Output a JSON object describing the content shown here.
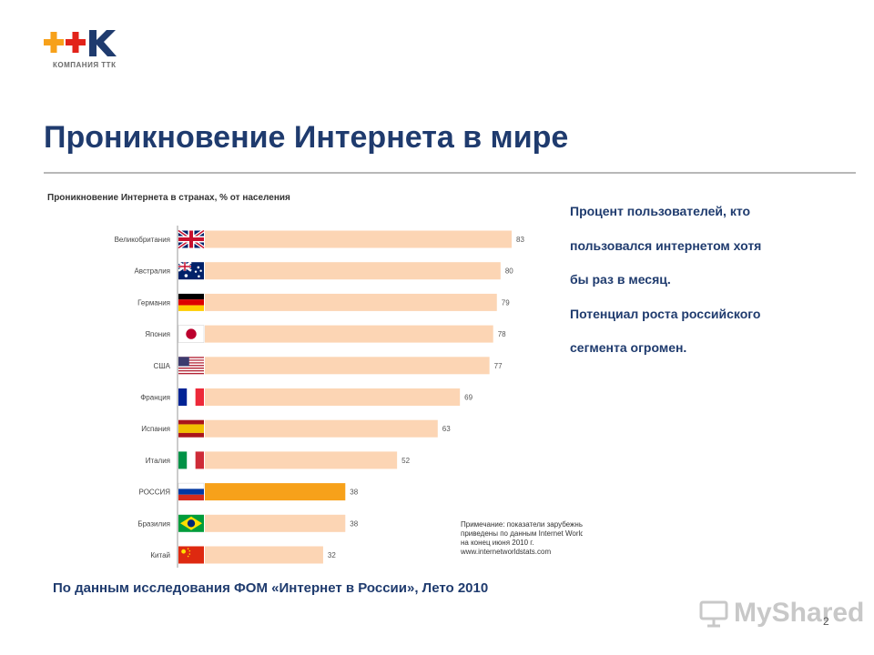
{
  "logo": {
    "caption": "КОМПАНИЯ ТТК"
  },
  "page": {
    "title": "Проникновение Интернета в мире",
    "side_text": [
      "Процент пользователей, кто",
      "пользовался интернетом хотя",
      "бы раз в месяц.",
      "Потенциал роста российского",
      "сегмента огромен."
    ],
    "source": "По данным исследования ФОМ «Интернет в России», Лето 2010",
    "page_number": "2",
    "watermark": "MyShared"
  },
  "chart_data": {
    "type": "bar",
    "orientation": "horizontal",
    "title": "Проникновение Интернета в странах, % от населения",
    "categories": [
      "Великобритания",
      "Австралия",
      "Германия",
      "Япония",
      "США",
      "Франция",
      "Испания",
      "Италия",
      "РОССИЯ",
      "Бразилия",
      "Китай"
    ],
    "flags": [
      "uk-flag-icon",
      "australia-flag-icon",
      "germany-flag-icon",
      "japan-flag-icon",
      "usa-flag-icon",
      "france-flag-icon",
      "spain-flag-icon",
      "italy-flag-icon",
      "russia-flag-icon",
      "brazil-flag-icon",
      "china-flag-icon"
    ],
    "values": [
      83,
      80,
      79,
      78,
      77,
      69,
      63,
      52,
      38,
      38,
      32
    ],
    "highlight_index": 8,
    "bar_color": "#fcd5b4",
    "highlight_color": "#f7a11a",
    "xlim": [
      0,
      83
    ],
    "note_lines": [
      "Примечание: показатели зарубежных стран",
      "приведены по данным Internet World Stats",
      "на конец июня 2010 г.",
      "www.internetworldstats.com"
    ]
  },
  "colors": {
    "accent": "#1f3b6e",
    "logo_orange": "#f7a11a",
    "logo_red": "#e2231a",
    "logo_blue": "#1f3b6e"
  }
}
